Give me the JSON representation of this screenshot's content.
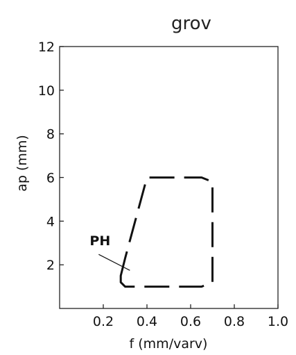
{
  "chart_data": {
    "type": "line",
    "title": "grov",
    "xlabel": "f (mm/varv)",
    "ylabel": "ap (mm)",
    "xlim": [
      0,
      1.0
    ],
    "ylim": [
      0,
      12
    ],
    "xticks": [
      "0.2",
      "0.4",
      "0.6",
      "0.8",
      "1.0"
    ],
    "yticks": [
      "2",
      "4",
      "6",
      "8",
      "10",
      "12"
    ],
    "series": [
      {
        "style": "dashed",
        "x": [
          0.28,
          0.3,
          0.4,
          0.65,
          0.7,
          0.7,
          0.65,
          0.3,
          0.28
        ],
        "y": [
          1.5,
          2.3,
          6.0,
          6.0,
          5.8,
          1.2,
          1.0,
          1.0,
          1.2
        ]
      }
    ],
    "annotations": [
      {
        "text": "PH",
        "x": 0.29,
        "y": 2.0
      }
    ],
    "grid": false
  }
}
